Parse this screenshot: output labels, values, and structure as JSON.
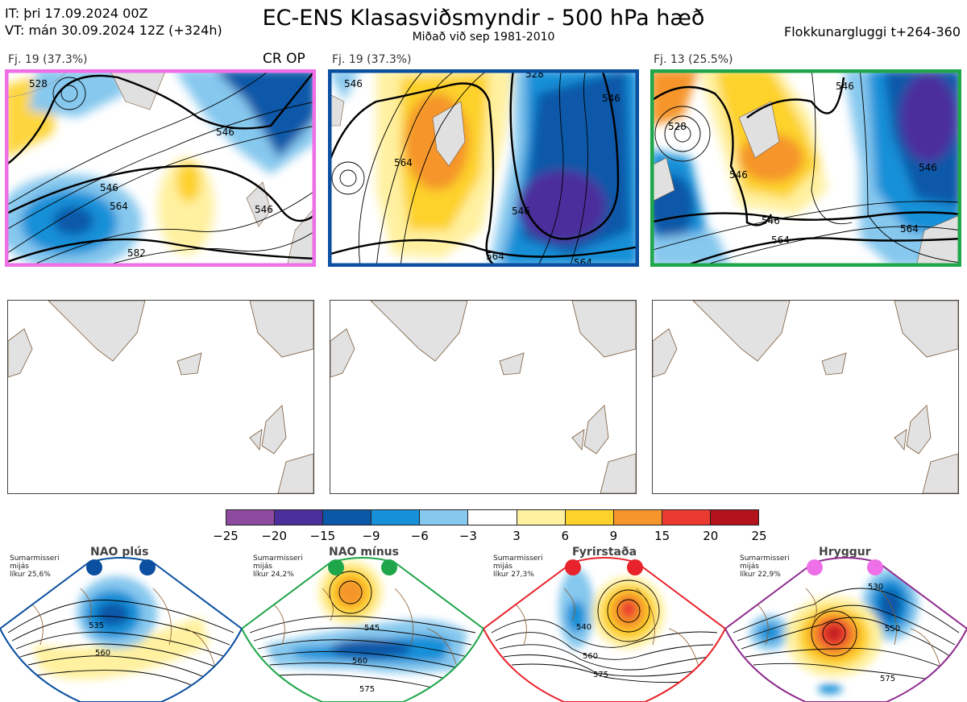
{
  "header": {
    "it_line": "IT: þri 17.09.2024 00Z",
    "vt_line": "VT: mán 30.09.2024 12Z  (+324h)",
    "title": "EC-ENS Klasasviðsmyndir - 500 hPa hæð",
    "subtitle": "Miðað við sep 1981-2010",
    "window": "Flokkunargluggi t+264-360"
  },
  "panels": [
    {
      "label": "Fj. 19 (37.3%)",
      "tag": "CR OP",
      "border": "#ee6fe8"
    },
    {
      "label": "Fj. 19 (37.3%)",
      "tag": "",
      "border": "#0a4fa0"
    },
    {
      "label": "Fj. 13 (25.5%)",
      "tag": "",
      "border": "#1fa64a"
    }
  ],
  "contour_labels": {
    "p1": [
      "546",
      "546",
      "564",
      "546",
      "582",
      "528"
    ],
    "p2": [
      "546",
      "564",
      "528",
      "546",
      "546",
      "564",
      "564"
    ],
    "p3": [
      "546",
      "528",
      "546",
      "546",
      "546",
      "564",
      "564"
    ]
  },
  "colorbar": {
    "colors": [
      "#8d4a9e",
      "#4b2f9c",
      "#0b58a8",
      "#1690d8",
      "#86c8ee",
      "#ffffff",
      "#fff1a0",
      "#fdd22a",
      "#f5952b",
      "#eb3a2f",
      "#b3131b"
    ],
    "ticks": [
      "−25",
      "−20",
      "−15",
      "−9",
      "−6",
      "−3",
      "3",
      "6",
      "9",
      "15",
      "20",
      "25"
    ]
  },
  "regimes": [
    {
      "name": "NAO plús",
      "season": "Sumarmisseri",
      "avg": "mijás",
      "prob": "líkur 25,6%",
      "dot": "#0a4fa0",
      "edge": "#0a4fa0",
      "labels": [
        "535",
        "560"
      ]
    },
    {
      "name": "NAO mínus",
      "season": "Sumarmisseri",
      "avg": "mijás",
      "prob": "líkur 24,2%",
      "dot": "#1fa64a",
      "edge": "#1fa64a",
      "labels": [
        "545",
        "560",
        "575"
      ]
    },
    {
      "name": "Fyrirstaða",
      "season": "Sumarmisseri",
      "avg": "mijás",
      "prob": "líkur 27,3%",
      "dot": "#e8232b",
      "edge": "#e8232b",
      "labels": [
        "540",
        "560",
        "575"
      ]
    },
    {
      "name": "Hryggur",
      "season": "Sumarmisseri",
      "avg": "mijás",
      "prob": "líkur 22,9%",
      "dot": "#ee6fe8",
      "edge": "#8e2c8e",
      "labels": [
        "530",
        "550",
        "575"
      ]
    }
  ]
}
